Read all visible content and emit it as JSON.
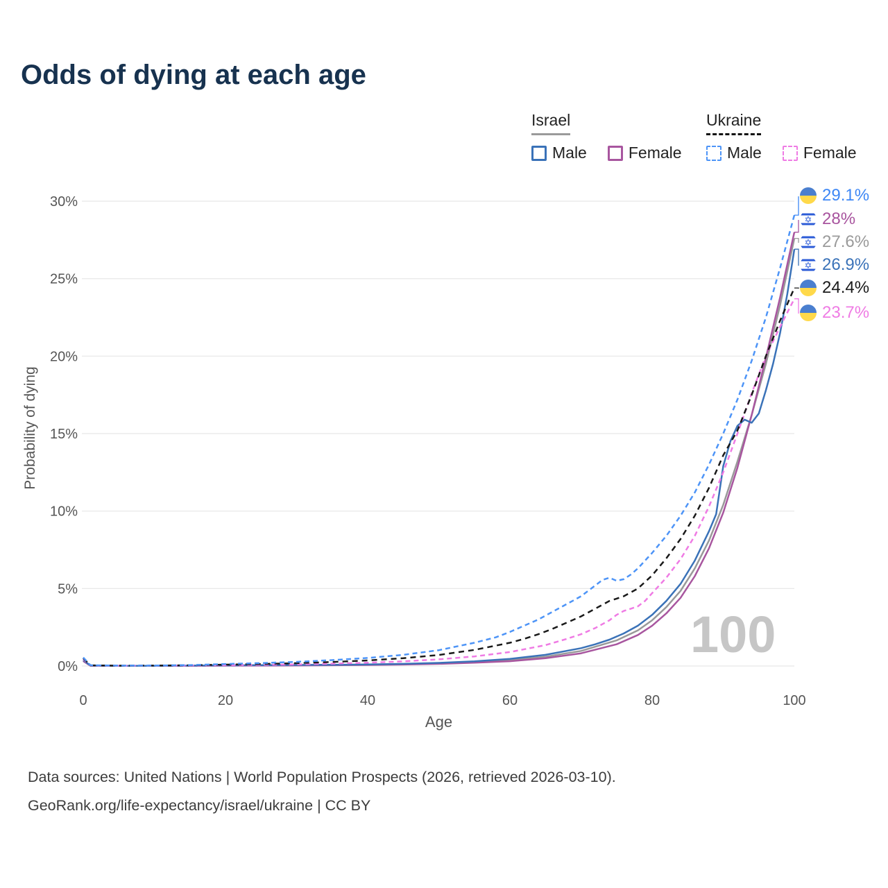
{
  "title": "Odds of dying at each age",
  "watermark": "100",
  "legend": {
    "israel": {
      "label": "Israel",
      "male": "Male",
      "female": "Female"
    },
    "ukraine": {
      "label": "Ukraine",
      "male": "Male",
      "female": "Female"
    }
  },
  "footer": {
    "line1": "Data sources: United Nations | World Population Prospects (2026, retrieved 2026-03-10).",
    "line2": "GeoRank.org/life-expectancy/israel/ukraine | CC BY"
  },
  "chart_data": {
    "type": "line",
    "title": "Odds of dying at each age",
    "xlabel": "Age",
    "ylabel": "Probability of dying",
    "xlim": [
      0,
      100
    ],
    "ylim": [
      0,
      30
    ],
    "x_ticks": [
      0,
      20,
      40,
      60,
      80,
      100
    ],
    "y_ticks": [
      0,
      5,
      10,
      15,
      20,
      25,
      30
    ],
    "y_tick_suffix": "%",
    "grid": "horizontal",
    "legend_position": "top-right",
    "series": [
      {
        "id": "israel-total",
        "name": "Israel (both sexes)",
        "color": "#999999",
        "dash": "",
        "width": 2.5,
        "points": [
          [
            0,
            0.35
          ],
          [
            1,
            0.025
          ],
          [
            5,
            0.01
          ],
          [
            10,
            0.011
          ],
          [
            15,
            0.02
          ],
          [
            20,
            0.033
          ],
          [
            25,
            0.04
          ],
          [
            30,
            0.05
          ],
          [
            35,
            0.065
          ],
          [
            40,
            0.082
          ],
          [
            45,
            0.12
          ],
          [
            50,
            0.17
          ],
          [
            55,
            0.25
          ],
          [
            60,
            0.38
          ],
          [
            65,
            0.6
          ],
          [
            70,
            0.97
          ],
          [
            75,
            1.65
          ],
          [
            78,
            2.3
          ],
          [
            80,
            2.95
          ],
          [
            82,
            3.8
          ],
          [
            84,
            4.85
          ],
          [
            86,
            6.3
          ],
          [
            88,
            8.1
          ],
          [
            90,
            10.4
          ],
          [
            92,
            13.2
          ],
          [
            94,
            16.2
          ],
          [
            96,
            19.5
          ],
          [
            98,
            23.3
          ],
          [
            100,
            27.6
          ]
        ]
      },
      {
        "id": "israel-female",
        "name": "Israel Female",
        "color": "#a8569f",
        "dash": "",
        "width": 2.5,
        "points": [
          [
            0,
            0.32
          ],
          [
            1,
            0.02
          ],
          [
            5,
            0.01
          ],
          [
            10,
            0.01
          ],
          [
            15,
            0.015
          ],
          [
            20,
            0.022
          ],
          [
            25,
            0.028
          ],
          [
            30,
            0.035
          ],
          [
            35,
            0.05
          ],
          [
            40,
            0.065
          ],
          [
            45,
            0.095
          ],
          [
            50,
            0.14
          ],
          [
            55,
            0.21
          ],
          [
            60,
            0.31
          ],
          [
            65,
            0.5
          ],
          [
            70,
            0.82
          ],
          [
            75,
            1.4
          ],
          [
            78,
            2.0
          ],
          [
            80,
            2.6
          ],
          [
            82,
            3.4
          ],
          [
            84,
            4.4
          ],
          [
            86,
            5.8
          ],
          [
            88,
            7.6
          ],
          [
            90,
            9.9
          ],
          [
            92,
            12.8
          ],
          [
            94,
            16.2
          ],
          [
            96,
            19.9
          ],
          [
            98,
            23.8
          ],
          [
            100,
            28.0
          ]
        ]
      },
      {
        "id": "israel-male",
        "name": "Israel Male",
        "color": "#3a72b8",
        "dash": "",
        "width": 2.5,
        "points": [
          [
            0,
            0.38
          ],
          [
            1,
            0.03
          ],
          [
            5,
            0.01
          ],
          [
            10,
            0.012
          ],
          [
            15,
            0.025
          ],
          [
            20,
            0.045
          ],
          [
            25,
            0.055
          ],
          [
            30,
            0.065
          ],
          [
            35,
            0.08
          ],
          [
            40,
            0.1
          ],
          [
            45,
            0.14
          ],
          [
            50,
            0.2
          ],
          [
            55,
            0.3
          ],
          [
            60,
            0.46
          ],
          [
            65,
            0.72
          ],
          [
            70,
            1.15
          ],
          [
            72,
            1.4
          ],
          [
            74,
            1.7
          ],
          [
            76,
            2.1
          ],
          [
            78,
            2.6
          ],
          [
            80,
            3.3
          ],
          [
            82,
            4.2
          ],
          [
            84,
            5.3
          ],
          [
            86,
            6.8
          ],
          [
            88,
            8.7
          ],
          [
            89,
            9.8
          ],
          [
            90,
            12.9
          ],
          [
            91,
            14.5
          ],
          [
            92,
            15.5
          ],
          [
            93,
            15.9
          ],
          [
            94,
            15.7
          ],
          [
            95,
            16.3
          ],
          [
            96,
            17.8
          ],
          [
            97,
            19.5
          ],
          [
            98,
            21.5
          ],
          [
            99,
            24.0
          ],
          [
            100,
            26.9
          ]
        ]
      },
      {
        "id": "ukraine-female",
        "name": "Ukraine Female",
        "color": "#ef7be4",
        "dash": "7 5",
        "width": 2.5,
        "points": [
          [
            0,
            0.45
          ],
          [
            1,
            0.035
          ],
          [
            5,
            0.018
          ],
          [
            10,
            0.022
          ],
          [
            15,
            0.035
          ],
          [
            20,
            0.055
          ],
          [
            25,
            0.075
          ],
          [
            30,
            0.105
          ],
          [
            35,
            0.15
          ],
          [
            40,
            0.21
          ],
          [
            45,
            0.3
          ],
          [
            50,
            0.43
          ],
          [
            55,
            0.62
          ],
          [
            60,
            0.9
          ],
          [
            65,
            1.35
          ],
          [
            68,
            1.75
          ],
          [
            70,
            2.05
          ],
          [
            72,
            2.45
          ],
          [
            74,
            2.95
          ],
          [
            75,
            3.3
          ],
          [
            76,
            3.55
          ],
          [
            77,
            3.7
          ],
          [
            78,
            3.85
          ],
          [
            79,
            4.2
          ],
          [
            80,
            4.7
          ],
          [
            82,
            5.7
          ],
          [
            84,
            6.9
          ],
          [
            86,
            8.4
          ],
          [
            88,
            10.3
          ],
          [
            90,
            12.5
          ],
          [
            92,
            15.0
          ],
          [
            94,
            17.6
          ],
          [
            96,
            20.0
          ],
          [
            98,
            21.9
          ],
          [
            100,
            23.7
          ]
        ]
      },
      {
        "id": "ukraine-total",
        "name": "Ukraine (both sexes)",
        "color": "#1a1a1a",
        "dash": "8 6",
        "width": 2.5,
        "points": [
          [
            0,
            0.5
          ],
          [
            1,
            0.042
          ],
          [
            5,
            0.021
          ],
          [
            10,
            0.026
          ],
          [
            15,
            0.048
          ],
          [
            20,
            0.09
          ],
          [
            25,
            0.13
          ],
          [
            30,
            0.185
          ],
          [
            35,
            0.26
          ],
          [
            40,
            0.36
          ],
          [
            45,
            0.5
          ],
          [
            50,
            0.71
          ],
          [
            55,
            1.04
          ],
          [
            60,
            1.5
          ],
          [
            62,
            1.75
          ],
          [
            64,
            2.05
          ],
          [
            66,
            2.4
          ],
          [
            68,
            2.8
          ],
          [
            70,
            3.2
          ],
          [
            72,
            3.7
          ],
          [
            74,
            4.2
          ],
          [
            75,
            4.35
          ],
          [
            76,
            4.5
          ],
          [
            78,
            5.0
          ],
          [
            80,
            5.85
          ],
          [
            82,
            6.95
          ],
          [
            84,
            8.2
          ],
          [
            86,
            9.7
          ],
          [
            88,
            11.5
          ],
          [
            90,
            13.6
          ],
          [
            92,
            15.2
          ],
          [
            94,
            17.5
          ],
          [
            96,
            20.0
          ],
          [
            98,
            22.3
          ],
          [
            100,
            24.4
          ]
        ]
      },
      {
        "id": "ukraine-male",
        "name": "Ukraine Male",
        "color": "#4d94f7",
        "dash": "7 5",
        "width": 2.5,
        "points": [
          [
            0,
            0.55
          ],
          [
            1,
            0.05
          ],
          [
            5,
            0.025
          ],
          [
            10,
            0.03
          ],
          [
            15,
            0.06
          ],
          [
            20,
            0.13
          ],
          [
            25,
            0.19
          ],
          [
            30,
            0.27
          ],
          [
            35,
            0.38
          ],
          [
            40,
            0.52
          ],
          [
            45,
            0.72
          ],
          [
            50,
            1.02
          ],
          [
            55,
            1.5
          ],
          [
            58,
            1.85
          ],
          [
            60,
            2.2
          ],
          [
            62,
            2.6
          ],
          [
            64,
            3.0
          ],
          [
            66,
            3.5
          ],
          [
            68,
            4.0
          ],
          [
            70,
            4.5
          ],
          [
            71,
            4.85
          ],
          [
            72,
            5.2
          ],
          [
            73,
            5.55
          ],
          [
            74,
            5.7
          ],
          [
            75,
            5.5
          ],
          [
            76,
            5.6
          ],
          [
            77,
            5.9
          ],
          [
            78,
            6.3
          ],
          [
            80,
            7.3
          ],
          [
            82,
            8.4
          ],
          [
            84,
            9.7
          ],
          [
            86,
            11.2
          ],
          [
            88,
            13.0
          ],
          [
            90,
            15.0
          ],
          [
            92,
            17.2
          ],
          [
            94,
            19.7
          ],
          [
            96,
            22.5
          ],
          [
            98,
            25.7
          ],
          [
            100,
            29.1
          ]
        ]
      }
    ],
    "end_labels": [
      {
        "id": "ukraine-male",
        "label": "29.1%",
        "value_num": 29.1,
        "color": "#3d87f5",
        "flag": "ukraine"
      },
      {
        "id": "israel-female",
        "label": "28%",
        "value_num": 28.0,
        "color": "#a8549e",
        "flag": "israel"
      },
      {
        "id": "israel-total",
        "label": "27.6%",
        "value_num": 27.6,
        "color": "#9a9a9a",
        "flag": "israel"
      },
      {
        "id": "israel-male",
        "label": "26.9%",
        "value_num": 26.9,
        "color": "#3a72b8",
        "flag": "israel"
      },
      {
        "id": "ukraine-total",
        "label": "24.4%",
        "value_num": 24.4,
        "color": "#1a1a1a",
        "flag": "ukraine"
      },
      {
        "id": "ukraine-female",
        "label": "23.7%",
        "value_num": 23.7,
        "color": "#ef7be4",
        "flag": "ukraine"
      }
    ]
  }
}
